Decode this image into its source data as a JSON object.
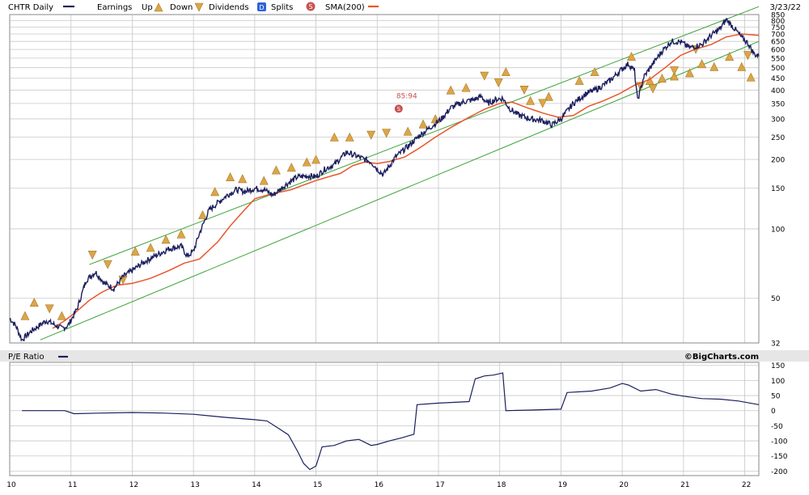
{
  "legend": {
    "symbol": "CHTR Daily",
    "earnings_label": "Earnings",
    "up_label": "Up",
    "down_label": "Down",
    "dividends_label": "Dividends",
    "dividend_badge": "D",
    "splits_label": "Splits",
    "split_badge": "S",
    "sma_label": "SMA(200)",
    "date": "3/23/22"
  },
  "lower_panel": {
    "title": "P/E Ratio",
    "credit": "©BigCharts.com"
  },
  "split_annotation": {
    "label": "85:94",
    "badge": "S"
  },
  "colors": {
    "price": "#1c1f5e",
    "sma": "#e8562a",
    "channel": "#3aa33a",
    "earnings_marker": "#d9a64a",
    "grid": "#c8c8c8",
    "frame": "#888888",
    "split_badge": "#c75151",
    "dividend_badge": "#2f63d8",
    "pe_line": "#1c1f5e"
  },
  "chart_data": [
    {
      "type": "line",
      "scale": "log",
      "x_ticks": [
        "10",
        "11",
        "12",
        "13",
        "14",
        "15",
        "16",
        "17",
        "18",
        "19",
        "20",
        "21",
        "22"
      ],
      "y_ticks": [
        850,
        800,
        750,
        700,
        650,
        600,
        550,
        500,
        450,
        400,
        350,
        300,
        250,
        200,
        150,
        100,
        50,
        32
      ],
      "ylim": [
        32,
        850
      ],
      "xlim": [
        2010.0,
        2022.23
      ],
      "series": [
        {
          "name": "CHTR Daily",
          "points": [
            [
              2010.0,
              41
            ],
            [
              2010.1,
              38
            ],
            [
              2010.2,
              33
            ],
            [
              2010.35,
              36
            ],
            [
              2010.6,
              40
            ],
            [
              2010.85,
              37
            ],
            [
              2010.95,
              38
            ],
            [
              2011.1,
              45
            ],
            [
              2011.25,
              60
            ],
            [
              2011.4,
              65
            ],
            [
              2011.55,
              58
            ],
            [
              2011.7,
              55
            ],
            [
              2011.85,
              62
            ],
            [
              2012.0,
              66
            ],
            [
              2012.2,
              72
            ],
            [
              2012.4,
              77
            ],
            [
              2012.6,
              82
            ],
            [
              2012.8,
              84
            ],
            [
              2012.9,
              76
            ],
            [
              2013.0,
              80
            ],
            [
              2013.1,
              96
            ],
            [
              2013.25,
              120
            ],
            [
              2013.4,
              130
            ],
            [
              2013.55,
              140
            ],
            [
              2013.7,
              148
            ],
            [
              2013.85,
              145
            ],
            [
              2014.0,
              150
            ],
            [
              2014.15,
              148
            ],
            [
              2014.3,
              140
            ],
            [
              2014.5,
              155
            ],
            [
              2014.7,
              168
            ],
            [
              2014.9,
              170
            ],
            [
              2015.0,
              168
            ],
            [
              2015.15,
              182
            ],
            [
              2015.3,
              190
            ],
            [
              2015.5,
              215
            ],
            [
              2015.7,
              205
            ],
            [
              2015.9,
              195
            ],
            [
              2016.0,
              182
            ],
            [
              2016.1,
              172
            ],
            [
              2016.3,
              205
            ],
            [
              2016.5,
              228
            ],
            [
              2016.7,
              255
            ],
            [
              2016.9,
              280
            ],
            [
              2017.05,
              300
            ],
            [
              2017.2,
              335
            ],
            [
              2017.4,
              355
            ],
            [
              2017.6,
              365
            ],
            [
              2017.7,
              375
            ],
            [
              2017.8,
              350
            ],
            [
              2017.95,
              365
            ],
            [
              2018.05,
              368
            ],
            [
              2018.15,
              335
            ],
            [
              2018.3,
              312
            ],
            [
              2018.5,
              300
            ],
            [
              2018.7,
              295
            ],
            [
              2018.85,
              282
            ],
            [
              2019.0,
              300
            ],
            [
              2019.2,
              350
            ],
            [
              2019.4,
              385
            ],
            [
              2019.6,
              405
            ],
            [
              2019.8,
              440
            ],
            [
              2020.0,
              495
            ],
            [
              2020.1,
              520
            ],
            [
              2020.2,
              485
            ],
            [
              2020.25,
              360
            ],
            [
              2020.35,
              455
            ],
            [
              2020.5,
              520
            ],
            [
              2020.65,
              590
            ],
            [
              2020.8,
              650
            ],
            [
              2020.95,
              648
            ],
            [
              2021.1,
              610
            ],
            [
              2021.3,
              630
            ],
            [
              2021.45,
              690
            ],
            [
              2021.6,
              740
            ],
            [
              2021.7,
              810
            ],
            [
              2021.85,
              730
            ],
            [
              2021.95,
              675
            ],
            [
              2022.05,
              640
            ],
            [
              2022.15,
              575
            ],
            [
              2022.23,
              560
            ]
          ]
        },
        {
          "name": "SMA(200)",
          "points": [
            [
              2010.7,
              37
            ],
            [
              2010.9,
              40
            ],
            [
              2011.1,
              44
            ],
            [
              2011.3,
              49
            ],
            [
              2011.5,
              53
            ],
            [
              2011.75,
              57
            ],
            [
              2012.0,
              58
            ],
            [
              2012.3,
              61
            ],
            [
              2012.6,
              66
            ],
            [
              2012.85,
              71
            ],
            [
              2013.1,
              74
            ],
            [
              2013.4,
              88
            ],
            [
              2013.6,
              103
            ],
            [
              2013.8,
              118
            ],
            [
              2014.0,
              135
            ],
            [
              2014.2,
              140
            ],
            [
              2014.4,
              144
            ],
            [
              2014.6,
              148
            ],
            [
              2014.8,
              155
            ],
            [
              2015.0,
              162
            ],
            [
              2015.2,
              168
            ],
            [
              2015.4,
              174
            ],
            [
              2015.6,
              188
            ],
            [
              2015.8,
              195
            ],
            [
              2016.0,
              192
            ],
            [
              2016.2,
              196
            ],
            [
              2016.45,
              205
            ],
            [
              2016.7,
              225
            ],
            [
              2016.95,
              250
            ],
            [
              2017.2,
              275
            ],
            [
              2017.5,
              305
            ],
            [
              2017.75,
              330
            ],
            [
              2018.0,
              350
            ],
            [
              2018.2,
              355
            ],
            [
              2018.45,
              335
            ],
            [
              2018.7,
              318
            ],
            [
              2018.95,
              305
            ],
            [
              2019.2,
              310
            ],
            [
              2019.45,
              340
            ],
            [
              2019.7,
              360
            ],
            [
              2019.95,
              385
            ],
            [
              2020.2,
              420
            ],
            [
              2020.45,
              445
            ],
            [
              2020.7,
              500
            ],
            [
              2020.95,
              565
            ],
            [
              2021.2,
              602
            ],
            [
              2021.45,
              630
            ],
            [
              2021.7,
              680
            ],
            [
              2021.95,
              700
            ],
            [
              2022.23,
              690
            ]
          ]
        },
        {
          "name": "channel_upper",
          "points": [
            [
              2011.3,
              70
            ],
            [
              2022.23,
              920
            ]
          ]
        },
        {
          "name": "channel_lower",
          "points": [
            [
              2010.5,
              33
            ],
            [
              2022.23,
              650
            ]
          ]
        }
      ],
      "earnings_up": [
        [
          2010.25,
          42
        ],
        [
          2010.4,
          48
        ],
        [
          2010.85,
          42
        ],
        [
          2012.05,
          80
        ],
        [
          2012.3,
          83
        ],
        [
          2012.55,
          90
        ],
        [
          2012.8,
          95
        ],
        [
          2013.15,
          115
        ],
        [
          2013.35,
          145
        ],
        [
          2013.6,
          168
        ],
        [
          2013.8,
          165
        ],
        [
          2014.15,
          162
        ],
        [
          2014.35,
          180
        ],
        [
          2014.6,
          185
        ],
        [
          2014.85,
          195
        ],
        [
          2015.0,
          200
        ],
        [
          2015.3,
          250
        ],
        [
          2015.55,
          250
        ],
        [
          2016.5,
          265
        ],
        [
          2016.75,
          285
        ],
        [
          2016.95,
          300
        ],
        [
          2017.2,
          400
        ],
        [
          2017.45,
          410
        ],
        [
          2018.1,
          480
        ],
        [
          2018.5,
          360
        ],
        [
          2018.8,
          375
        ],
        [
          2019.3,
          440
        ],
        [
          2019.55,
          480
        ],
        [
          2020.15,
          560
        ],
        [
          2020.45,
          440
        ],
        [
          2020.65,
          450
        ],
        [
          2020.85,
          460
        ],
        [
          2021.1,
          475
        ],
        [
          2021.3,
          520
        ],
        [
          2021.5,
          505
        ],
        [
          2021.75,
          560
        ],
        [
          2021.95,
          505
        ],
        [
          2022.1,
          455
        ]
      ],
      "earnings_down": [
        [
          2010.65,
          45
        ],
        [
          2011.35,
          77
        ],
        [
          2011.6,
          70
        ],
        [
          2011.85,
          60
        ],
        [
          2015.9,
          255
        ],
        [
          2016.15,
          260
        ],
        [
          2017.75,
          460
        ],
        [
          2017.98,
          430
        ],
        [
          2018.4,
          400
        ],
        [
          2018.7,
          350
        ],
        [
          2020.3,
          415
        ],
        [
          2020.5,
          405
        ],
        [
          2020.85,
          485
        ],
        [
          2021.2,
          600
        ],
        [
          2022.05,
          565
        ]
      ]
    },
    {
      "type": "line",
      "title": "P/E Ratio",
      "y_ticks": [
        150,
        100,
        50,
        0,
        -50,
        -100,
        -150,
        -200
      ],
      "ylim": [
        -215,
        160
      ],
      "series": [
        {
          "name": "P/E Ratio",
          "points": [
            [
              2010.2,
              0
            ],
            [
              2010.9,
              0
            ],
            [
              2011.05,
              -10
            ],
            [
              2011.5,
              -8
            ],
            [
              2012.0,
              -6
            ],
            [
              2012.5,
              -8
            ],
            [
              2013.0,
              -12
            ],
            [
              2013.5,
              -22
            ],
            [
              2014.0,
              -30
            ],
            [
              2014.2,
              -34
            ],
            [
              2014.4,
              -60
            ],
            [
              2014.55,
              -80
            ],
            [
              2014.7,
              -135
            ],
            [
              2014.8,
              -175
            ],
            [
              2014.9,
              -195
            ],
            [
              2015.0,
              -183
            ],
            [
              2015.1,
              -120
            ],
            [
              2015.3,
              -115
            ],
            [
              2015.5,
              -100
            ],
            [
              2015.7,
              -95
            ],
            [
              2015.9,
              -115
            ],
            [
              2016.0,
              -112
            ],
            [
              2016.2,
              -100
            ],
            [
              2016.4,
              -90
            ],
            [
              2016.6,
              -78
            ],
            [
              2016.65,
              20
            ],
            [
              2017.0,
              25
            ],
            [
              2017.5,
              30
            ],
            [
              2017.6,
              105
            ],
            [
              2017.75,
              115
            ],
            [
              2017.9,
              118
            ],
            [
              2018.05,
              125
            ],
            [
              2018.1,
              0
            ],
            [
              2018.5,
              2
            ],
            [
              2019.0,
              5
            ],
            [
              2019.1,
              60
            ],
            [
              2019.5,
              65
            ],
            [
              2019.8,
              75
            ],
            [
              2020.0,
              90
            ],
            [
              2020.1,
              85
            ],
            [
              2020.3,
              65
            ],
            [
              2020.55,
              70
            ],
            [
              2020.8,
              55
            ],
            [
              2021.0,
              48
            ],
            [
              2021.3,
              40
            ],
            [
              2021.6,
              38
            ],
            [
              2021.9,
              32
            ],
            [
              2022.23,
              20
            ]
          ]
        }
      ]
    }
  ]
}
